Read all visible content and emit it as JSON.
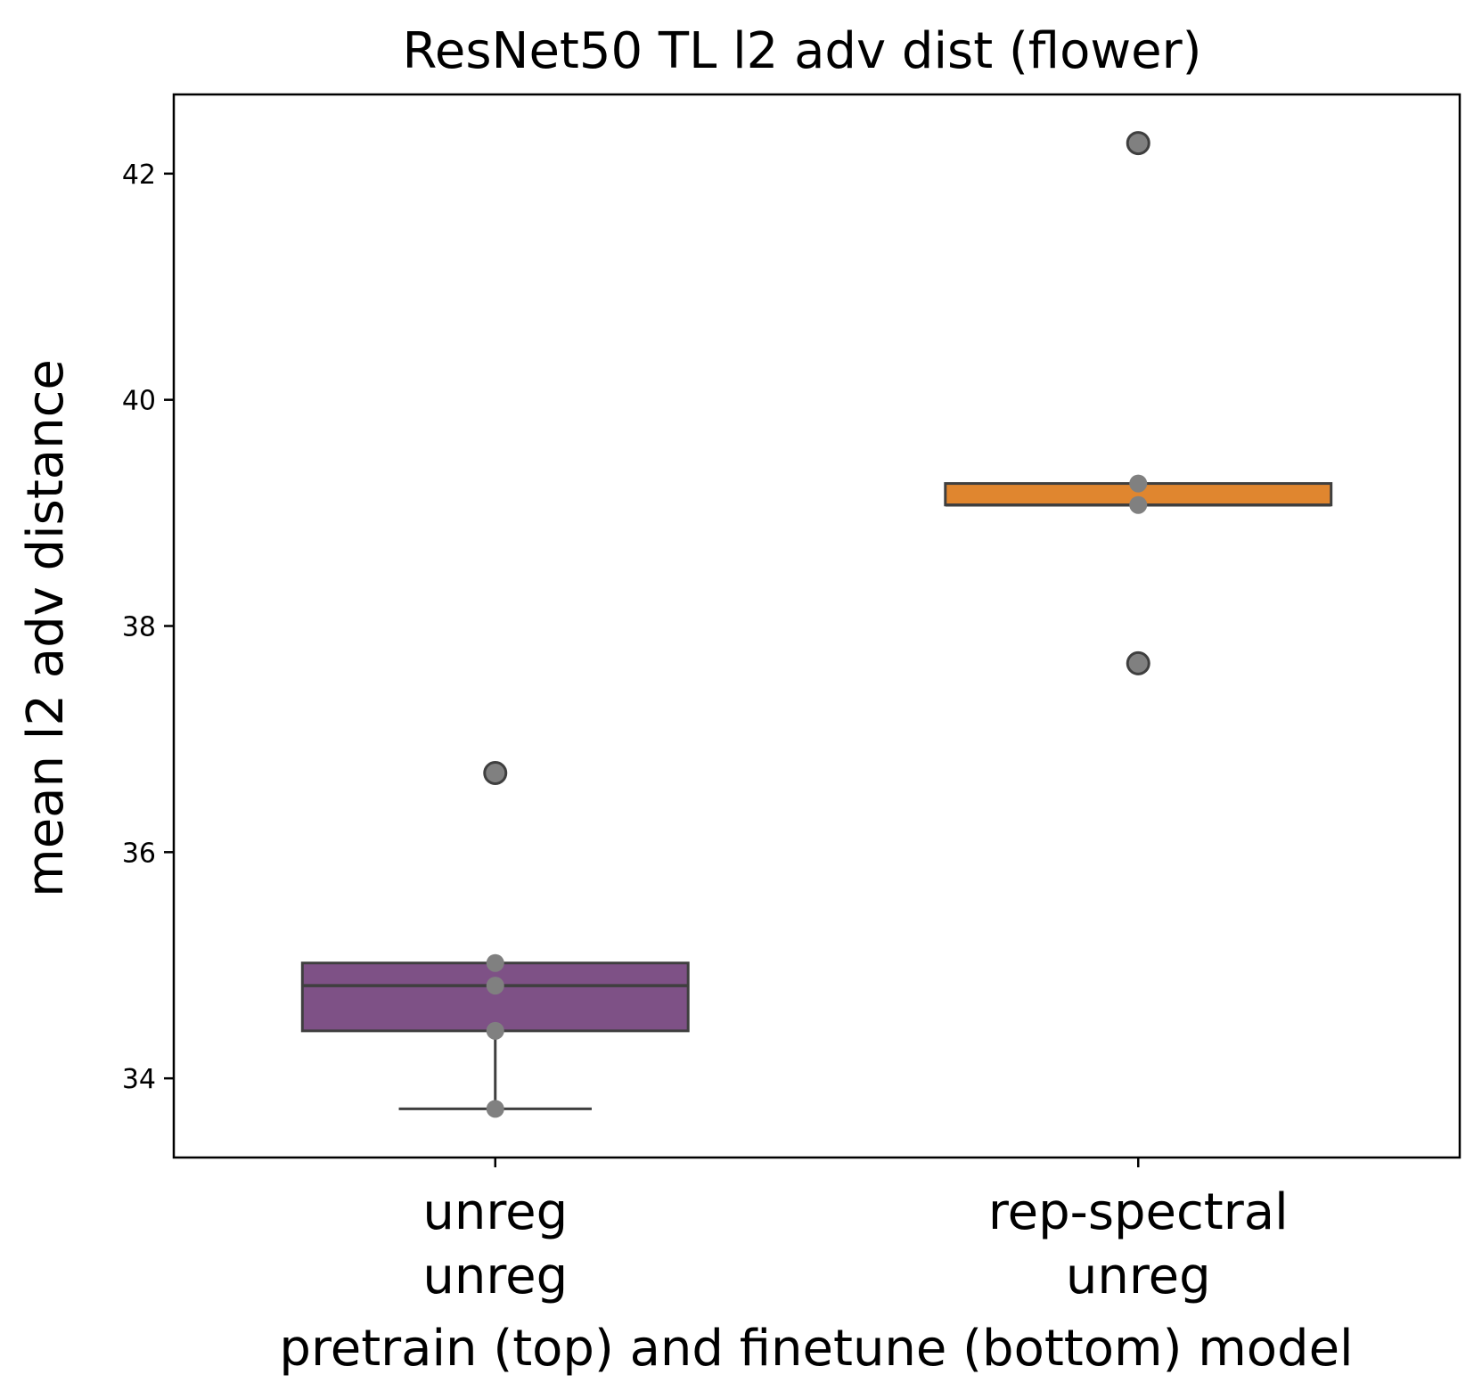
{
  "chart_data": {
    "type": "box",
    "title": "ResNet50 TL l2 adv dist (flower)",
    "xlabel": "pretrain (top) and finetune (bottom) model",
    "ylabel": "mean l2 adv distance",
    "ylim": [
      33.3,
      42.7
    ],
    "yticks": [
      34,
      36,
      38,
      40,
      42
    ],
    "grid": false,
    "groups": [
      {
        "label_top": "unreg",
        "label_bottom": "unreg",
        "color": "#7e5186",
        "q1": 34.42,
        "median": 34.82,
        "q3": 35.02,
        "whisker_low": 33.73,
        "whisker_high": 35.02,
        "outliers": [
          36.7
        ],
        "points": [
          35.02,
          34.82,
          34.42,
          33.73
        ]
      },
      {
        "label_top": "rep-spectral",
        "label_bottom": "unreg",
        "color": "#e0862f",
        "q1": 39.07,
        "median": 39.07,
        "q3": 39.26,
        "whisker_low": 39.07,
        "whisker_high": 39.26,
        "outliers": [
          42.27,
          37.67
        ],
        "points": [
          39.26,
          39.07
        ]
      }
    ]
  }
}
